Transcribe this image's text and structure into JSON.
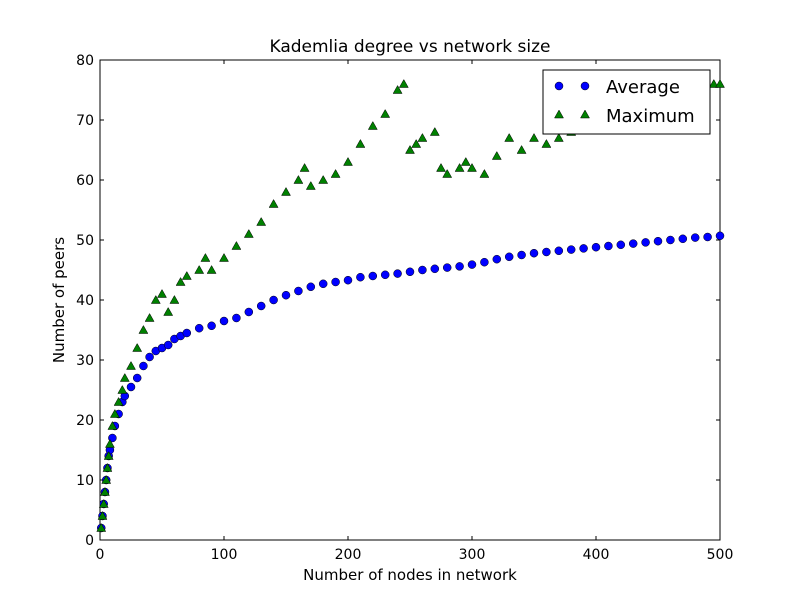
{
  "chart_data": {
    "type": "scatter",
    "title": "Kademlia degree vs network size",
    "xlabel": "Number of nodes in network",
    "ylabel": "Number of peers",
    "xlim": [
      0,
      500
    ],
    "ylim": [
      0,
      80
    ],
    "x_ticks": [
      "0",
      "100",
      "200",
      "300",
      "400",
      "500"
    ],
    "y_ticks": [
      "0",
      "10",
      "20",
      "30",
      "40",
      "50",
      "60",
      "70",
      "80"
    ],
    "grid": false,
    "legend_position": "top-right",
    "series": [
      {
        "name": "Average",
        "marker": "circle",
        "color": "#0000ff",
        "points": [
          [
            1,
            2
          ],
          [
            2,
            4
          ],
          [
            3,
            6
          ],
          [
            4,
            8
          ],
          [
            5,
            10
          ],
          [
            6,
            12
          ],
          [
            7,
            14
          ],
          [
            8,
            15
          ],
          [
            10,
            17
          ],
          [
            12,
            19
          ],
          [
            15,
            21
          ],
          [
            18,
            23
          ],
          [
            20,
            24
          ],
          [
            25,
            25.5
          ],
          [
            30,
            27
          ],
          [
            35,
            29
          ],
          [
            40,
            30.5
          ],
          [
            45,
            31.5
          ],
          [
            50,
            32
          ],
          [
            55,
            32.5
          ],
          [
            60,
            33.5
          ],
          [
            65,
            34
          ],
          [
            70,
            34.5
          ],
          [
            80,
            35.3
          ],
          [
            90,
            35.7
          ],
          [
            100,
            36.5
          ],
          [
            110,
            37
          ],
          [
            120,
            38
          ],
          [
            130,
            39
          ],
          [
            140,
            40
          ],
          [
            150,
            40.8
          ],
          [
            160,
            41.5
          ],
          [
            170,
            42.2
          ],
          [
            180,
            42.7
          ],
          [
            190,
            43
          ],
          [
            200,
            43.3
          ],
          [
            210,
            43.8
          ],
          [
            220,
            44
          ],
          [
            230,
            44.2
          ],
          [
            240,
            44.4
          ],
          [
            250,
            44.7
          ],
          [
            260,
            45
          ],
          [
            270,
            45.2
          ],
          [
            280,
            45.4
          ],
          [
            290,
            45.6
          ],
          [
            300,
            45.9
          ],
          [
            310,
            46.3
          ],
          [
            320,
            46.8
          ],
          [
            330,
            47.2
          ],
          [
            340,
            47.5
          ],
          [
            350,
            47.8
          ],
          [
            360,
            48
          ],
          [
            370,
            48.2
          ],
          [
            380,
            48.4
          ],
          [
            390,
            48.6
          ],
          [
            400,
            48.8
          ],
          [
            410,
            49
          ],
          [
            420,
            49.2
          ],
          [
            430,
            49.4
          ],
          [
            440,
            49.6
          ],
          [
            450,
            49.8
          ],
          [
            460,
            50
          ],
          [
            470,
            50.2
          ],
          [
            480,
            50.4
          ],
          [
            490,
            50.5
          ],
          [
            500,
            50.7
          ]
        ]
      },
      {
        "name": "Maximum",
        "marker": "triangle",
        "color": "#008000",
        "points": [
          [
            1,
            2
          ],
          [
            2,
            4
          ],
          [
            3,
            6
          ],
          [
            4,
            8
          ],
          [
            5,
            10
          ],
          [
            6,
            12
          ],
          [
            7,
            14
          ],
          [
            8,
            16
          ],
          [
            10,
            19
          ],
          [
            12,
            21
          ],
          [
            15,
            23
          ],
          [
            18,
            25
          ],
          [
            20,
            27
          ],
          [
            25,
            29
          ],
          [
            30,
            32
          ],
          [
            35,
            35
          ],
          [
            40,
            37
          ],
          [
            45,
            40
          ],
          [
            50,
            41
          ],
          [
            55,
            38
          ],
          [
            60,
            40
          ],
          [
            65,
            43
          ],
          [
            70,
            44
          ],
          [
            80,
            45
          ],
          [
            85,
            47
          ],
          [
            90,
            45
          ],
          [
            100,
            47
          ],
          [
            110,
            49
          ],
          [
            120,
            51
          ],
          [
            130,
            53
          ],
          [
            140,
            56
          ],
          [
            150,
            58
          ],
          [
            160,
            60
          ],
          [
            165,
            62
          ],
          [
            170,
            59
          ],
          [
            180,
            60
          ],
          [
            190,
            61
          ],
          [
            200,
            63
          ],
          [
            210,
            66
          ],
          [
            220,
            69
          ],
          [
            230,
            71
          ],
          [
            240,
            75
          ],
          [
            245,
            76
          ],
          [
            250,
            65
          ],
          [
            255,
            66
          ],
          [
            260,
            67
          ],
          [
            270,
            68
          ],
          [
            275,
            62
          ],
          [
            280,
            61
          ],
          [
            290,
            62
          ],
          [
            295,
            63
          ],
          [
            300,
            62
          ],
          [
            310,
            61
          ],
          [
            320,
            64
          ],
          [
            330,
            67
          ],
          [
            340,
            65
          ],
          [
            350,
            67
          ],
          [
            360,
            66
          ],
          [
            370,
            67
          ],
          [
            380,
            68
          ],
          [
            390,
            69
          ],
          [
            400,
            70
          ],
          [
            420,
            71
          ],
          [
            440,
            73
          ],
          [
            460,
            74
          ],
          [
            480,
            76
          ],
          [
            495,
            76
          ],
          [
            500,
            76
          ]
        ]
      }
    ]
  }
}
